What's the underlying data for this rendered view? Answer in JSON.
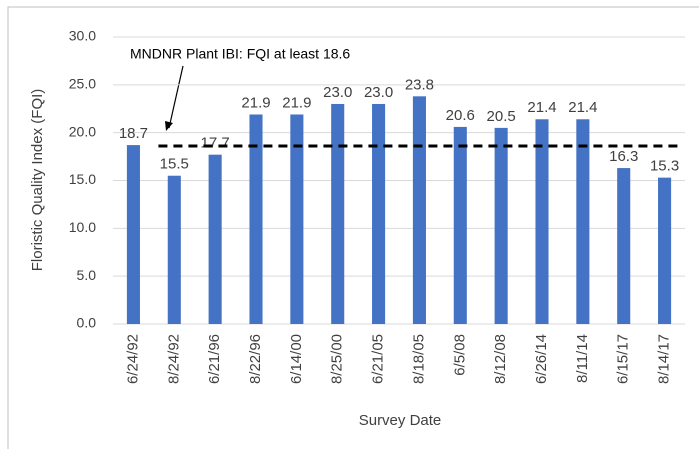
{
  "chart_data": {
    "type": "bar",
    "categories": [
      "6/24/92",
      "8/24/92",
      "6/21/96",
      "8/22/96",
      "6/14/00",
      "8/25/00",
      "6/21/05",
      "8/18/05",
      "6/5/08",
      "8/12/08",
      "6/26/14",
      "8/11/14",
      "6/15/17",
      "8/14/17"
    ],
    "values": [
      18.7,
      15.5,
      17.7,
      21.9,
      21.9,
      23,
      23,
      23.8,
      20.6,
      20.5,
      21.4,
      21.4,
      16.3,
      15.3
    ],
    "value_labels": [
      "18.7",
      "15.5",
      "17.7",
      "21.9",
      "21.9",
      "23.0",
      "23.0",
      "23.8",
      "20.6",
      "20.5",
      "21.4",
      "21.4",
      "16.3",
      "15.3"
    ],
    "color": "#4472c4",
    "x_label": "Survey Date",
    "y_label": "Floristic Quality Index (FQI)",
    "ylim": [
      0,
      30
    ],
    "yticks": [
      {
        "value": 0,
        "label": "0.0"
      },
      {
        "value": 5,
        "label": "5.0"
      },
      {
        "value": 10,
        "label": "10.0"
      },
      {
        "value": 15,
        "label": "15.0"
      },
      {
        "value": 20,
        "label": "20.0"
      },
      {
        "value": 25,
        "label": "25.0"
      },
      {
        "value": 30,
        "label": "30.0"
      }
    ],
    "grid": true,
    "reference_line": {
      "value": 18.6,
      "label": "MNDNR Plant IBI: FQI at least 18.6",
      "color": "#000000"
    }
  }
}
